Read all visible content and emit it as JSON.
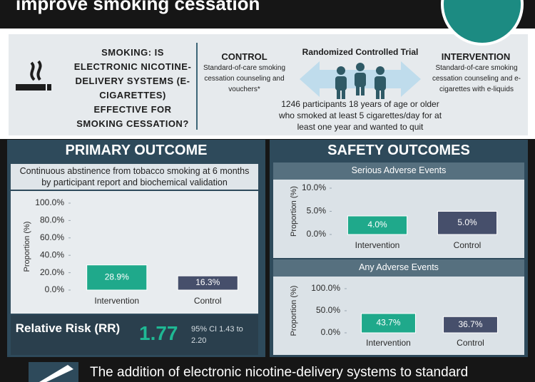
{
  "header": {
    "title": "improve smoking cessation"
  },
  "question": "SMOKING: IS ELECTRONIC NICOTINE-DELIVERY SYSTEMS (E-CIGARETTES) EFFECTIVE FOR SMOKING CESSATION?",
  "design": {
    "control": {
      "title": "CONTROL",
      "text": "Standard-of-care smoking cessation counseling and vouchers*"
    },
    "trial": "Randomized Controlled Trial",
    "intervention": {
      "title": "INTERVENTION",
      "text": "Standard-of-care smoking cessation counseling and e-cigarettes with e-liquids"
    },
    "participants": "1246 participants 18 years of age or older who smoked at least 5 cigarettes/day for at least one year and wanted to quit"
  },
  "primary": {
    "title": "PRIMARY OUTCOME",
    "relative_risk": {
      "label": "Relative Risk (RR)",
      "value": "1.77",
      "ci": "95% CI 1.43 to 2.20"
    }
  },
  "safety": {
    "title": "SAFETY OUTCOMES"
  },
  "footer": "The addition of electronic nicotine-delivery systems to standard",
  "chart_data": [
    {
      "type": "bar",
      "title": "Continuous abstinence from tobacco smoking at 6 months by participant report and biochemical validation",
      "y_label": "Proportion (%)",
      "categories": [
        "Intervention",
        "Control"
      ],
      "values": [
        28.9,
        16.3
      ],
      "value_labels": [
        "28.9%",
        "16.3%"
      ],
      "colors": [
        "#1fa98b",
        "#464f6b"
      ],
      "ylim": [
        0,
        100
      ],
      "yticks": [
        {
          "value": 0,
          "label": "0.0%"
        },
        {
          "value": 20,
          "label": "20.0%"
        },
        {
          "value": 40,
          "label": "40.0%"
        },
        {
          "value": 60,
          "label": "60.0%"
        },
        {
          "value": 80,
          "label": "80.0%"
        },
        {
          "value": 100,
          "label": "100.0%"
        }
      ]
    },
    {
      "type": "bar",
      "title": "Serious Adverse Events",
      "y_label": "Proportion (%)",
      "categories": [
        "Intervention",
        "Control"
      ],
      "values": [
        4.0,
        5.0
      ],
      "value_labels": [
        "4.0%",
        "5.0%"
      ],
      "colors": [
        "#1fa98b",
        "#464f6b"
      ],
      "ylim": [
        0,
        10
      ],
      "yticks": [
        {
          "value": 0,
          "label": "0.0%"
        },
        {
          "value": 5,
          "label": "5.0%"
        },
        {
          "value": 10,
          "label": "10.0%"
        }
      ]
    },
    {
      "type": "bar",
      "title": "Any Adverse Events",
      "y_label": "Proportion (%)",
      "categories": [
        "Intervention",
        "Control"
      ],
      "values": [
        43.7,
        36.7
      ],
      "value_labels": [
        "43.7%",
        "36.7%"
      ],
      "colors": [
        "#1fa98b",
        "#464f6b"
      ],
      "ylim": [
        0,
        100
      ],
      "yticks": [
        {
          "value": 0,
          "label": "0.0%"
        },
        {
          "value": 50,
          "label": "50.0%"
        },
        {
          "value": 100,
          "label": "100.0%"
        }
      ]
    }
  ]
}
